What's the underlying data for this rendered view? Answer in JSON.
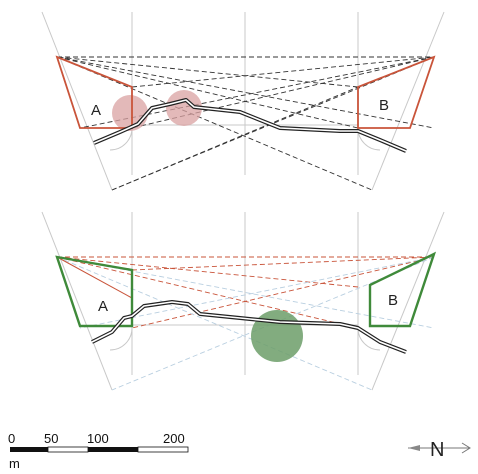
{
  "diagram": {
    "top": {
      "label_a": "A",
      "label_b": "B"
    },
    "bottom": {
      "label_a": "A",
      "label_b": "B"
    },
    "colors": {
      "red_line": "#c9543a",
      "green_line": "#3f8a3a",
      "red_circle": "#d9a1a1",
      "green_circle": "#6c9e68",
      "dashed_line": "#333333",
      "guide_line": "#cfcfcf"
    }
  },
  "scale_bar": {
    "ticks": [
      "0",
      "50",
      "100",
      "200"
    ],
    "unit": "m"
  },
  "north": {
    "label": "N"
  }
}
